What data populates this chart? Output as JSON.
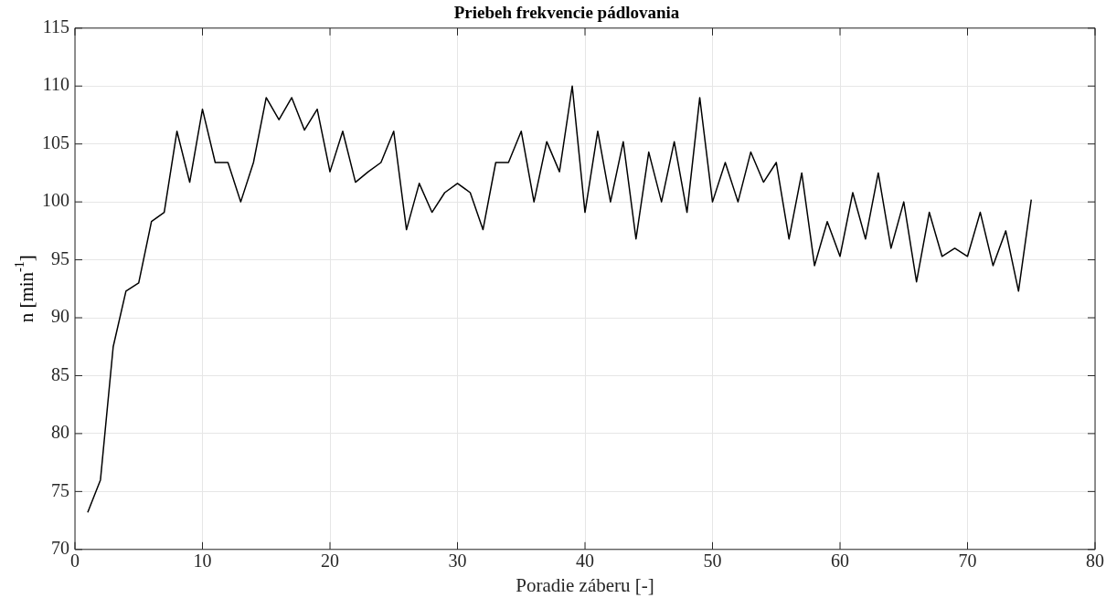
{
  "chart_data": {
    "type": "line",
    "title": "Priebeh frekvencie pádlovania",
    "xlabel": "Poradie záberu [-]",
    "ylabel": "n [min$^{-1}$]",
    "x": [
      1,
      2,
      3,
      4,
      5,
      6,
      7,
      8,
      9,
      10,
      11,
      12,
      13,
      14,
      15,
      16,
      17,
      18,
      19,
      20,
      21,
      22,
      23,
      24,
      25,
      26,
      27,
      28,
      29,
      30,
      31,
      32,
      33,
      34,
      35,
      36,
      37,
      38,
      39,
      40,
      41,
      42,
      43,
      44,
      45,
      46,
      47,
      48,
      49,
      50,
      51,
      52,
      53,
      54,
      55,
      56,
      57,
      58,
      59,
      60,
      61,
      62,
      63,
      64,
      65,
      66,
      67,
      68,
      69,
      70,
      71,
      72,
      73,
      74,
      75
    ],
    "series": [
      {
        "color": "#000000",
        "values": [
          73.2,
          76,
          87.5,
          92.3,
          93,
          98.3,
          99.1,
          106.1,
          101.7,
          108,
          103.4,
          103.4,
          100,
          103.4,
          109,
          107.1,
          109,
          106.2,
          108,
          102.6,
          106.1,
          101.7,
          102.6,
          103.4,
          106.1,
          97.6,
          101.6,
          99.1,
          100.8,
          101.6,
          100.8,
          97.6,
          103.4,
          103.4,
          106.1,
          100,
          105.2,
          102.6,
          110,
          99.1,
          106.1,
          100,
          105.2,
          96.8,
          104.3,
          100,
          105.2,
          99.1,
          109,
          100,
          103.4,
          100,
          104.3,
          101.7,
          103.4,
          96.8,
          102.5,
          94.5,
          98.3,
          95.3,
          100.8,
          96.8,
          102.5,
          96,
          100,
          93.1,
          99.1,
          95.3,
          96,
          95.3,
          99.1,
          94.5,
          97.5,
          92.3,
          100.2
        ]
      }
    ],
    "xlim": [
      0,
      80
    ],
    "xticks": [
      0,
      10,
      20,
      30,
      40,
      50,
      60,
      70,
      80
    ],
    "ylim": [
      70,
      115
    ],
    "yticks": [
      70,
      75,
      80,
      85,
      90,
      95,
      100,
      105,
      110,
      115
    ],
    "grid": true,
    "legend": false,
    "marker": "none",
    "line_style": "solid"
  }
}
